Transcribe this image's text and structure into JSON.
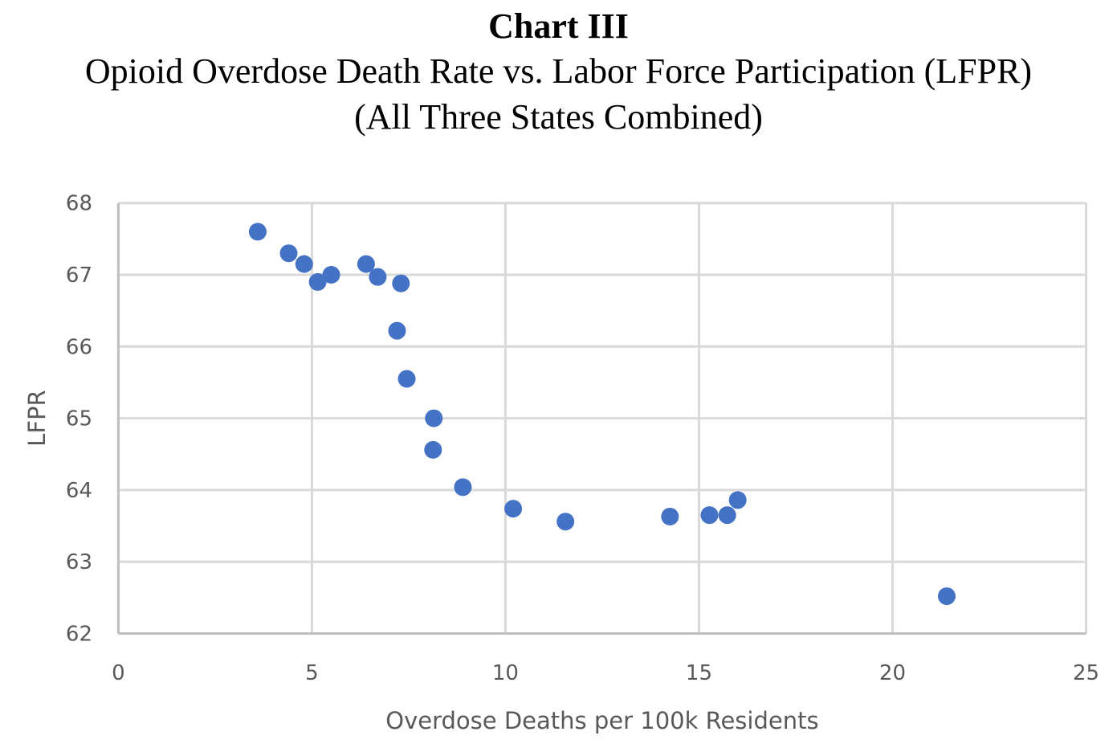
{
  "chart_data": {
    "type": "scatter",
    "title": "Chart III",
    "subtitle": "Opioid Overdose Death Rate vs. Labor Force Participation (LFPR)",
    "subtitle2": "(All Three States Combined)",
    "xlabel": "Overdose Deaths per 100k Residents",
    "ylabel": "LFPR",
    "xlim": [
      0,
      25
    ],
    "ylim": [
      62,
      68
    ],
    "xticks": [
      0,
      5,
      10,
      15,
      20,
      25
    ],
    "yticks": [
      62,
      63,
      64,
      65,
      66,
      67,
      68
    ],
    "grid": true,
    "legend": "none",
    "marker_color": "#4472c4",
    "gridline_color": "#d9d9d9",
    "series": [
      {
        "name": "LFPR",
        "points": [
          {
            "x": 3.6,
            "y": 67.6
          },
          {
            "x": 4.4,
            "y": 67.3
          },
          {
            "x": 4.8,
            "y": 67.15
          },
          {
            "x": 5.15,
            "y": 66.9
          },
          {
            "x": 5.5,
            "y": 67.0
          },
          {
            "x": 6.4,
            "y": 67.15
          },
          {
            "x": 6.7,
            "y": 66.97
          },
          {
            "x": 7.3,
            "y": 66.88
          },
          {
            "x": 7.2,
            "y": 66.22
          },
          {
            "x": 7.45,
            "y": 65.55
          },
          {
            "x": 8.15,
            "y": 65.0
          },
          {
            "x": 8.13,
            "y": 64.56
          },
          {
            "x": 8.9,
            "y": 64.04
          },
          {
            "x": 10.2,
            "y": 63.74
          },
          {
            "x": 11.55,
            "y": 63.56
          },
          {
            "x": 14.25,
            "y": 63.63
          },
          {
            "x": 15.27,
            "y": 63.65
          },
          {
            "x": 15.73,
            "y": 63.65
          },
          {
            "x": 16.0,
            "y": 63.86
          },
          {
            "x": 21.4,
            "y": 62.52
          }
        ]
      }
    ]
  }
}
